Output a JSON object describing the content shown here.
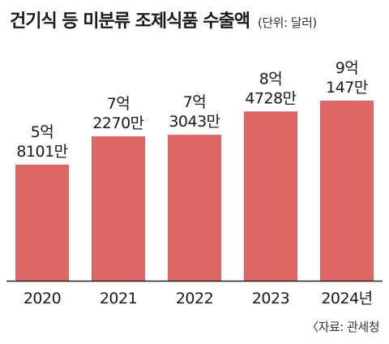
{
  "header": {
    "title": "건기식 등 미분류 조제식품 수출액",
    "unit": "(단위: 달러)"
  },
  "source": "〈자료: 관세청",
  "colors": {
    "bar": "#e06666",
    "axis": "#222222"
  },
  "chart_data": {
    "type": "bar",
    "categories": [
      "2020",
      "2021",
      "2022",
      "2023",
      "2024년"
    ],
    "values": [
      581010000,
      722700000,
      730430000,
      847280000,
      901470000
    ],
    "data_labels": [
      [
        "5억",
        "8101만"
      ],
      [
        "7억",
        "2270만"
      ],
      [
        "7억",
        "3043만"
      ],
      [
        "8억",
        "4728만"
      ],
      [
        "9억",
        "147만"
      ]
    ],
    "grid": false,
    "legend": "none"
  }
}
